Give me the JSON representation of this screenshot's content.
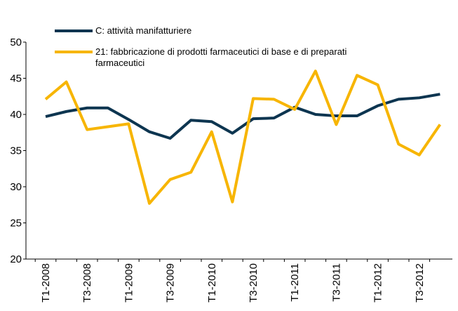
{
  "chart_data": {
    "type": "line",
    "categories": [
      "T1-2008",
      null,
      "T3-2008",
      null,
      "T1-2009",
      null,
      "T3-2009",
      null,
      "T1-2010",
      null,
      "T3-2010",
      null,
      "T1-2011",
      null,
      "T3-2011",
      null,
      "T1-2012",
      null,
      "T3-2012",
      null
    ],
    "series": [
      {
        "name": "C: attività manifatturiere",
        "color": "#0d3550",
        "values": [
          39.7,
          40.4,
          40.9,
          40.9,
          39.3,
          37.6,
          36.7,
          39.2,
          39.0,
          37.4,
          39.4,
          39.5,
          41.0,
          40.0,
          39.8,
          39.8,
          41.2,
          42.1,
          42.3,
          42.8
        ]
      },
      {
        "name": "21: fabbricazione di prodotti farmaceutici di base e di preparati farmaceutici",
        "color": "#f7b500",
        "values": [
          42.1,
          44.5,
          37.9,
          38.3,
          38.7,
          27.7,
          31.0,
          32.0,
          37.6,
          27.9,
          42.2,
          42.1,
          40.7,
          46.0,
          38.6,
          45.4,
          44.1,
          35.9,
          34.4,
          38.6
        ]
      }
    ],
    "ylim": [
      20,
      50
    ],
    "yticks": [
      20,
      25,
      30,
      35,
      40,
      45,
      50
    ],
    "grid": false,
    "legend": "top-left"
  }
}
